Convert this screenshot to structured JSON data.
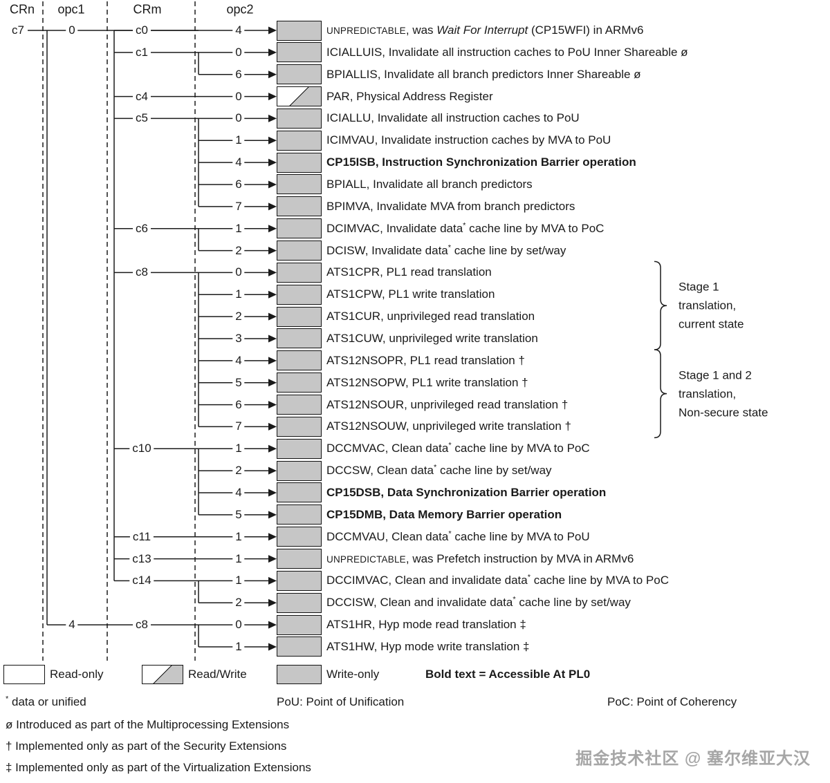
{
  "header": {
    "columns": [
      "CRn",
      "opc1",
      "CRm",
      "opc2"
    ]
  },
  "tree": {
    "crn": "c7",
    "opc1_groups": [
      {
        "opc1": "0",
        "crm_groups": [
          {
            "crm": "c0",
            "rows": [
              {
                "opc2": "4",
                "access": "write-only",
                "desc": [
                  {
                    "t": "UNPREDICTABLE",
                    "s": "sc"
                  },
                  {
                    "t": ", was "
                  },
                  {
                    "t": "Wait For Interrupt",
                    "s": "i"
                  },
                  {
                    "t": " (CP15WFI) in ARMv6"
                  }
                ]
              }
            ]
          },
          {
            "crm": "c1",
            "rows": [
              {
                "opc2": "0",
                "access": "write-only",
                "desc": [
                  {
                    "t": "ICIALLUIS, Invalidate all instruction caches to PoU Inner Shareable ø"
                  }
                ]
              },
              {
                "opc2": "6",
                "access": "write-only",
                "desc": [
                  {
                    "t": "BPIALLIS, Invalidate all branch predictors Inner Shareable ø"
                  }
                ]
              }
            ]
          },
          {
            "crm": "c4",
            "rows": [
              {
                "opc2": "0",
                "access": "read-write",
                "desc": [
                  {
                    "t": "PAR, Physical Address Register"
                  }
                ]
              }
            ]
          },
          {
            "crm": "c5",
            "rows": [
              {
                "opc2": "0",
                "access": "write-only",
                "desc": [
                  {
                    "t": "ICIALLU, Invalidate all instruction caches to PoU"
                  }
                ]
              },
              {
                "opc2": "1",
                "access": "write-only",
                "desc": [
                  {
                    "t": "ICIMVAU, Invalidate instruction caches by MVA to PoU"
                  }
                ]
              },
              {
                "opc2": "4",
                "access": "write-only",
                "desc": [
                  {
                    "t": "CP15ISB, Instruction Synchronization Barrier operation",
                    "s": "b"
                  }
                ]
              },
              {
                "opc2": "6",
                "access": "write-only",
                "desc": [
                  {
                    "t": "BPIALL, Invalidate all branch predictors"
                  }
                ]
              },
              {
                "opc2": "7",
                "access": "write-only",
                "desc": [
                  {
                    "t": "BPIMVA, Invalidate MVA from branch predictors"
                  }
                ]
              }
            ]
          },
          {
            "crm": "c6",
            "rows": [
              {
                "opc2": "1",
                "access": "write-only",
                "desc": [
                  {
                    "t": "DCIMVAC, Invalidate data"
                  },
                  {
                    "t": "*",
                    "s": "sup"
                  },
                  {
                    "t": " cache line by MVA to PoC"
                  }
                ]
              },
              {
                "opc2": "2",
                "access": "write-only",
                "desc": [
                  {
                    "t": "DCISW, Invalidate data"
                  },
                  {
                    "t": "*",
                    "s": "sup"
                  },
                  {
                    "t": " cache line by set/way"
                  }
                ]
              }
            ]
          },
          {
            "crm": "c8",
            "rows": [
              {
                "opc2": "0",
                "access": "write-only",
                "desc": [
                  {
                    "t": "ATS1CPR, PL1 read translation"
                  }
                ]
              },
              {
                "opc2": "1",
                "access": "write-only",
                "desc": [
                  {
                    "t": "ATS1CPW, PL1 write translation"
                  }
                ]
              },
              {
                "opc2": "2",
                "access": "write-only",
                "desc": [
                  {
                    "t": "ATS1CUR, unprivileged read translation"
                  }
                ]
              },
              {
                "opc2": "3",
                "access": "write-only",
                "desc": [
                  {
                    "t": "ATS1CUW, unprivileged write translation"
                  }
                ]
              },
              {
                "opc2": "4",
                "access": "write-only",
                "desc": [
                  {
                    "t": "ATS12NSOPR, PL1 read translation †"
                  }
                ]
              },
              {
                "opc2": "5",
                "access": "write-only",
                "desc": [
                  {
                    "t": "ATS12NSOPW, PL1 write translation †"
                  }
                ]
              },
              {
                "opc2": "6",
                "access": "write-only",
                "desc": [
                  {
                    "t": "ATS12NSOUR, unprivileged read translation †"
                  }
                ]
              },
              {
                "opc2": "7",
                "access": "write-only",
                "desc": [
                  {
                    "t": "ATS12NSOUW, unprivileged write translation †"
                  }
                ]
              }
            ]
          },
          {
            "crm": "c10",
            "rows": [
              {
                "opc2": "1",
                "access": "write-only",
                "desc": [
                  {
                    "t": "DCCMVAC, Clean data"
                  },
                  {
                    "t": "*",
                    "s": "sup"
                  },
                  {
                    "t": " cache line by MVA to PoC"
                  }
                ]
              },
              {
                "opc2": "2",
                "access": "write-only",
                "desc": [
                  {
                    "t": "DCCSW, Clean data"
                  },
                  {
                    "t": "*",
                    "s": "sup"
                  },
                  {
                    "t": " cache line by set/way"
                  }
                ]
              },
              {
                "opc2": "4",
                "access": "write-only",
                "desc": [
                  {
                    "t": "CP15DSB, Data Synchronization Barrier operation",
                    "s": "b"
                  }
                ]
              },
              {
                "opc2": "5",
                "access": "write-only",
                "desc": [
                  {
                    "t": "CP15DMB, Data Memory Barrier operation",
                    "s": "b"
                  }
                ]
              }
            ]
          },
          {
            "crm": "c11",
            "rows": [
              {
                "opc2": "1",
                "access": "write-only",
                "desc": [
                  {
                    "t": "DCCMVAU, Clean data"
                  },
                  {
                    "t": "*",
                    "s": "sup"
                  },
                  {
                    "t": " cache line by MVA to PoU"
                  }
                ]
              }
            ]
          },
          {
            "crm": "c13",
            "rows": [
              {
                "opc2": "1",
                "access": "write-only",
                "desc": [
                  {
                    "t": "UNPREDICTABLE",
                    "s": "sc"
                  },
                  {
                    "t": ", was Prefetch instruction by MVA in ARMv6"
                  }
                ]
              }
            ]
          },
          {
            "crm": "c14",
            "rows": [
              {
                "opc2": "1",
                "access": "write-only",
                "desc": [
                  {
                    "t": "DCCIMVAC, Clean and invalidate data"
                  },
                  {
                    "t": "*",
                    "s": "sup"
                  },
                  {
                    "t": " cache line by MVA to PoC"
                  }
                ]
              },
              {
                "opc2": "2",
                "access": "write-only",
                "desc": [
                  {
                    "t": "DCCISW, Clean and invalidate data"
                  },
                  {
                    "t": "*",
                    "s": "sup"
                  },
                  {
                    "t": " cache line by set/way"
                  }
                ]
              }
            ]
          }
        ]
      },
      {
        "opc1": "4",
        "crm_groups": [
          {
            "crm": "c8",
            "rows": [
              {
                "opc2": "0",
                "access": "write-only",
                "desc": [
                  {
                    "t": "ATS1HR, Hyp mode read translation ‡"
                  }
                ]
              },
              {
                "opc2": "1",
                "access": "write-only",
                "desc": [
                  {
                    "t": "ATS1HW, Hyp mode write translation ‡"
                  }
                ]
              }
            ]
          }
        ]
      }
    ]
  },
  "braces": [
    {
      "from_row": 11,
      "to_row": 14,
      "label": "Stage 1\ntranslation,\ncurrent state"
    },
    {
      "from_row": 15,
      "to_row": 18,
      "label": "Stage 1 and 2\ntranslation,\nNon-secure state"
    }
  ],
  "legend": {
    "read_only": "Read-only",
    "read_write": "Read/Write",
    "write_only": "Write-only",
    "bold_note": "Bold text = Accessible At PL0"
  },
  "footnotes": {
    "star_sym": "*",
    "star_text": " data or unified",
    "pou": "PoU: Point of Unification",
    "poc": "PoC: Point of Coherency",
    "multiprocessing": "ø Introduced as part of the Multiprocessing Extensions",
    "security": "† Implemented only as part of the Security Extensions",
    "virtualization": "‡ Implemented only as part of the Virtualization Extensions"
  },
  "watermark": "掘金技术社区 @ 塞尔维亚大汉",
  "colors": {
    "box_gray": "#c6c6c6",
    "line": "#1a1a1a",
    "watermark": "#a6a6a6"
  }
}
